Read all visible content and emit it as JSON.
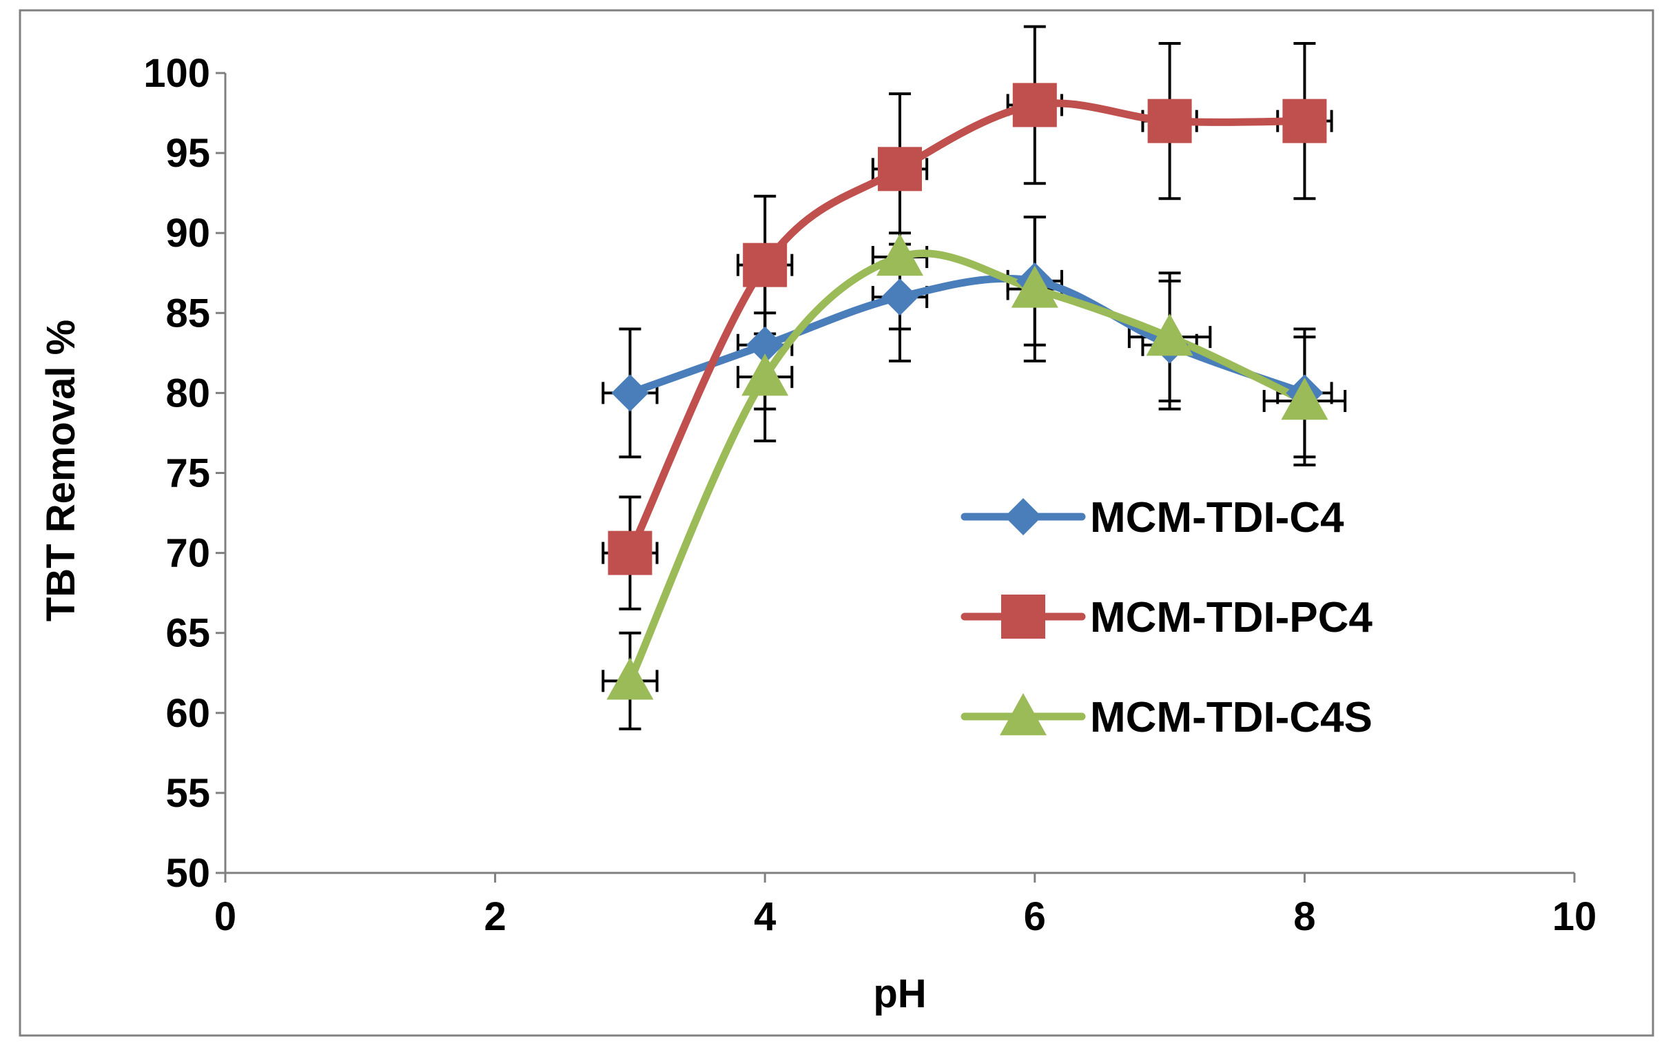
{
  "chart_data": {
    "type": "line",
    "title": "",
    "xlabel": "pH",
    "ylabel": "TBT Removal %",
    "xlim": [
      0,
      10
    ],
    "ylim": [
      50,
      100
    ],
    "xticks": [
      0,
      2,
      4,
      6,
      8,
      10
    ],
    "yticks": [
      50,
      55,
      60,
      65,
      70,
      75,
      80,
      85,
      90,
      95,
      100
    ],
    "grid": false,
    "legend_position": "right",
    "series": [
      {
        "name": "MCM-TDI-C4",
        "color": "#4A7EBB",
        "marker": "diamond",
        "x": [
          3,
          4,
          5,
          6,
          7,
          8
        ],
        "y": [
          80,
          83,
          86,
          87,
          83,
          80
        ],
        "yerr": [
          4,
          4,
          4,
          4,
          4,
          4
        ],
        "xerr": [
          0.2,
          0.2,
          0.2,
          0.2,
          0.2,
          0.2
        ]
      },
      {
        "name": "MCM-TDI-PC4",
        "color": "#C0504D",
        "marker": "square",
        "x": [
          3,
          4,
          5,
          6,
          7,
          8
        ],
        "y": [
          70,
          88,
          94,
          98,
          97,
          97
        ],
        "yerr": [
          3.5,
          4.3,
          4.7,
          4.9,
          4.85,
          4.85
        ],
        "xerr": [
          0.2,
          0.2,
          0.2,
          0.2,
          0.2,
          0.2
        ]
      },
      {
        "name": "MCM-TDI-C4S",
        "color": "#9BBB59",
        "marker": "triangle",
        "x": [
          3,
          4,
          5,
          6,
          7,
          8
        ],
        "y": [
          62,
          81,
          88.5,
          86.5,
          83.5,
          79.5
        ],
        "yerr": [
          3,
          4,
          4.5,
          4.5,
          4,
          4
        ],
        "xerr": [
          0.2,
          0.2,
          0.2,
          0.2,
          0.3,
          0.3
        ]
      }
    ]
  }
}
